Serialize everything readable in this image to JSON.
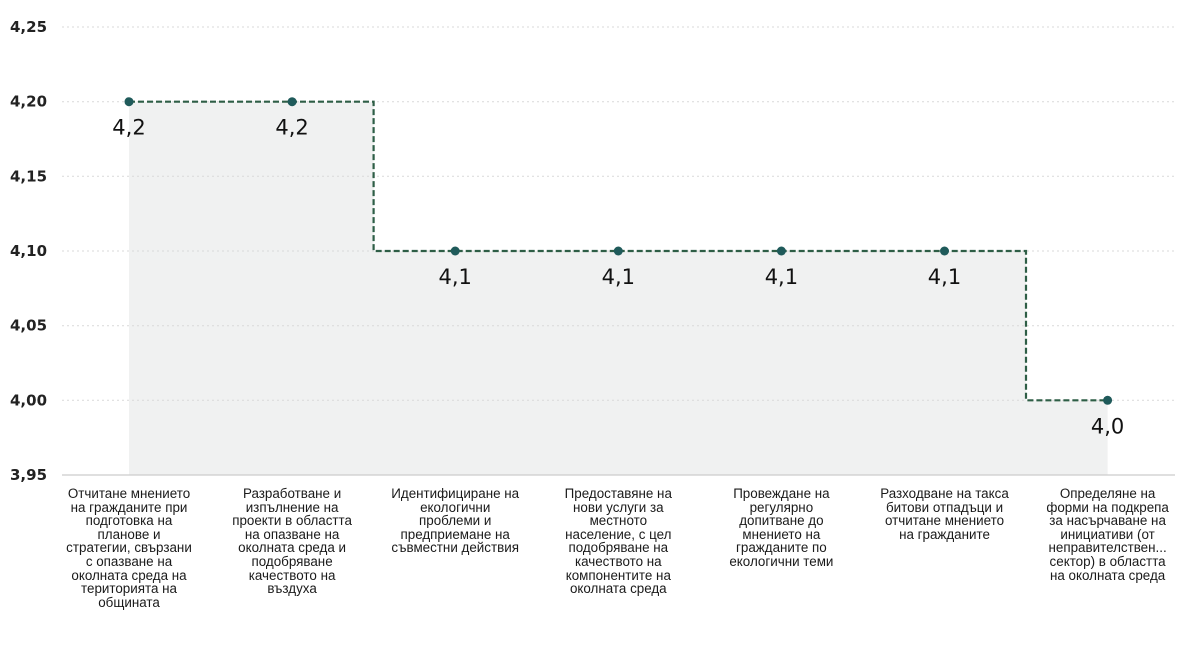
{
  "chart_data": {
    "type": "line",
    "step": true,
    "categories": [
      "Отчитане мнението на гражданите при подготовка на планове и стратегии, свързани с опазване на околната среда на територията на общината",
      "Разработване и изпълнение на проекти в областта на опазване на околната среда и подобряване качеството на въздуха",
      "Идентифициране на екологични проблеми и предприемане на съвместни действия",
      "Предоставяне на нови услуги за местното население, с цел подобряване на качеството на компонентите на околната среда",
      "Провеждане на регулярно допитване до мнението на гражданите по екологични теми",
      "Разходване на такса битови отпадъци и отчитане мнението на гражданите",
      "Определяне на форми на подкрепа за насърчаване на инициативи (от неправителствен... сектор) в областта на околната среда"
    ],
    "values": [
      4.2,
      4.2,
      4.1,
      4.1,
      4.1,
      4.1,
      4.0
    ],
    "data_labels": [
      "4,2",
      "4,2",
      "4,1",
      "4,1",
      "4,1",
      "4,1",
      "4,0"
    ],
    "ylim": [
      3.95,
      4.25
    ],
    "y_ticks": [
      3.95,
      4.0,
      4.05,
      4.1,
      4.15,
      4.2,
      4.25
    ],
    "y_tick_labels": [
      "3,95",
      "4,00",
      "4,05",
      "4,10",
      "4,15",
      "4,20",
      "4,25"
    ],
    "title": "",
    "xlabel": "",
    "ylabel": "",
    "grid": true,
    "legend": "none",
    "colors": {
      "line": "#2e5e46",
      "marker": "#1f5a5a",
      "area": "#f0f1f1",
      "grid": "#d9d9d9",
      "axis": "#cccccc"
    }
  }
}
